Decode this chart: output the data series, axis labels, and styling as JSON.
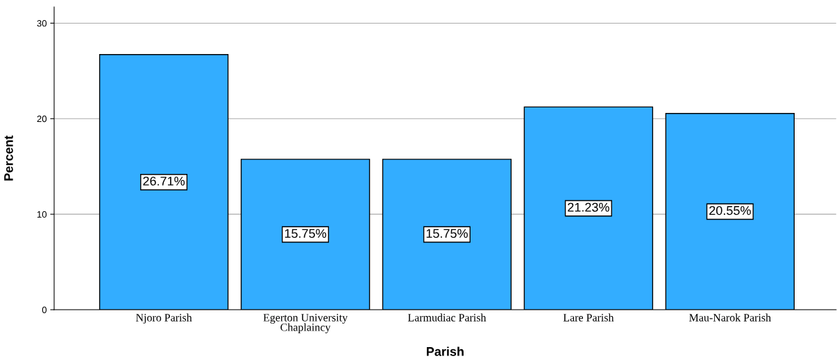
{
  "chart_data": {
    "type": "bar",
    "xlabel": "Parish",
    "ylabel": "Percent",
    "categories": [
      "Njoro Parish",
      "Egerton University\nChaplaincy",
      "Larmudiac Parish",
      "Lare Parish",
      "Mau-Narok Parish"
    ],
    "values": [
      26.71,
      15.75,
      15.75,
      21.23,
      20.55
    ],
    "value_labels": [
      "26.71%",
      "15.75%",
      "15.75%",
      "21.23%",
      "20.55%"
    ],
    "color": "#33adff",
    "ylim": [
      0,
      31.7
    ],
    "yticks": [
      0,
      10,
      20,
      30
    ],
    "grid": "y"
  }
}
